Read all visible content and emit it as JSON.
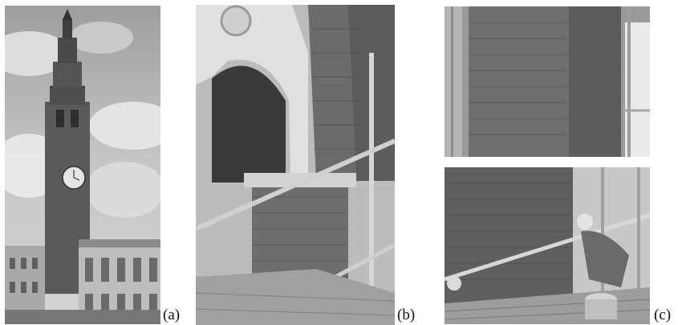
{
  "captions": {
    "a": "(a)",
    "b": "(b)",
    "c": "(c)"
  },
  "colors": {
    "sky": "#c9c9c9",
    "cloud": "#e6e6e6",
    "brick": "#6f6f6f",
    "brick_dark": "#4a4a4a",
    "stone_light": "#d8d8d8",
    "scaffold": "#bdbdbd"
  }
}
